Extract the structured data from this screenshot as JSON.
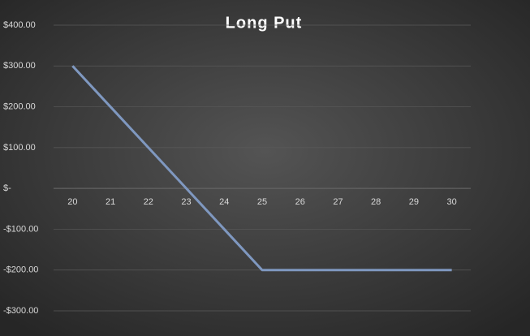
{
  "chart_data": {
    "type": "line",
    "title": "Long Put",
    "categories": [
      "20",
      "21",
      "22",
      "23",
      "24",
      "25",
      "26",
      "27",
      "28",
      "29",
      "30"
    ],
    "series": [
      {
        "name": "Long Put",
        "color": "#7f98c0",
        "values": [
          300,
          200,
          100,
          0,
          -100,
          -200,
          -200,
          -200,
          -200,
          -200,
          -200
        ]
      }
    ],
    "ylim": [
      -300,
      400
    ],
    "yticks": [
      {
        "value": -300,
        "label": "-$300.00"
      },
      {
        "value": -200,
        "label": "-$200.00"
      },
      {
        "value": -100,
        "label": "-$100.00"
      },
      {
        "value": 0,
        "label": "$-"
      },
      {
        "value": 100,
        "label": "$100.00"
      },
      {
        "value": 200,
        "label": "$200.00"
      },
      {
        "value": 300,
        "label": "$300.00"
      },
      {
        "value": 400,
        "label": "$400.00"
      }
    ],
    "grid": true
  }
}
